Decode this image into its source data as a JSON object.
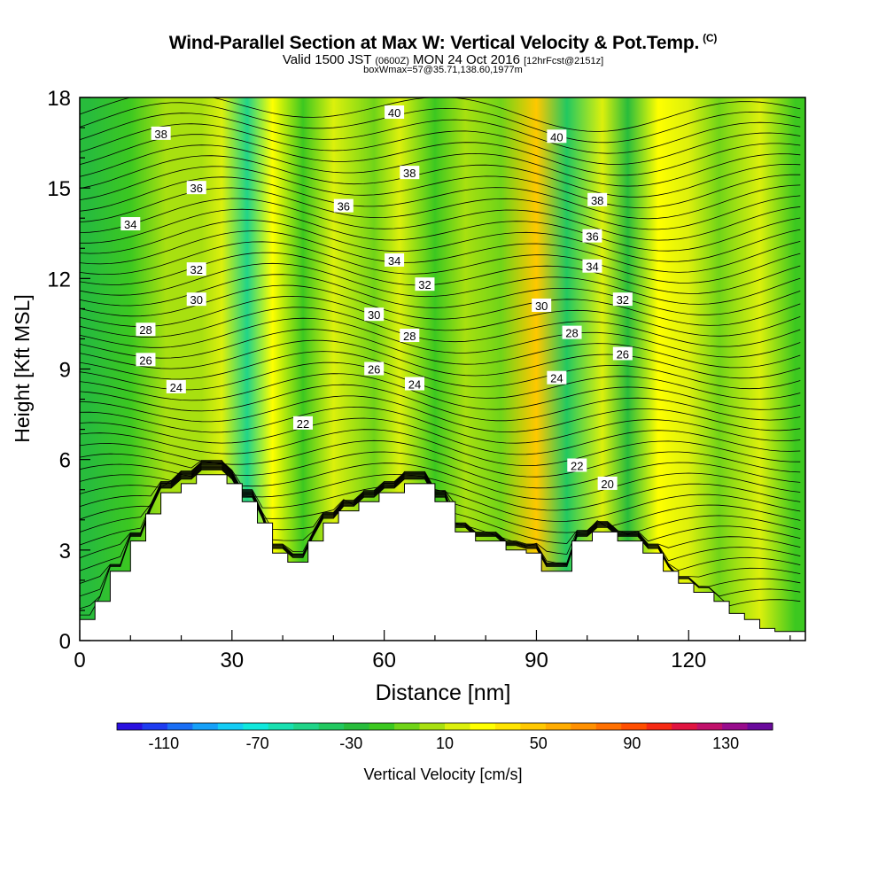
{
  "header": {
    "title": "Wind-Parallel Section at Max W: Vertical Velocity & Pot.Temp.",
    "copyright": "(C)",
    "valid_prefix": "Valid 1500 JST",
    "valid_utc": "(0600Z)",
    "valid_date": "MON 24 Oct 2016",
    "forecast": "[12hrFcst@2151z]",
    "box_info": "boxWmax=57@35.71,138.60,1977m"
  },
  "chart_data": {
    "type": "heatmap",
    "title": "Wind-Parallel Section at Max W: Vertical Velocity & Pot.Temp.",
    "xlabel": "Distance [nm]",
    "ylabel": "Height [Kft MSL]",
    "xlim": [
      0,
      143
    ],
    "ylim": [
      0,
      18
    ],
    "x_ticks": [
      0,
      30,
      60,
      90,
      120
    ],
    "y_ticks": [
      0,
      3,
      6,
      9,
      12,
      15,
      18
    ],
    "colorbar_label": "Vertical Velocity [cm/s]",
    "colorbar_ticks": [
      -110,
      -70,
      -30,
      10,
      50,
      90,
      130
    ],
    "colorbar_colors": [
      "#2a10e0",
      "#1e3cf0",
      "#1a6ef4",
      "#16a0f8",
      "#14ccf4",
      "#10e8dc",
      "#18e0b0",
      "#20d488",
      "#22c860",
      "#28bc3c",
      "#3cc820",
      "#70d418",
      "#a8e010",
      "#dcf00c",
      "#ffff00",
      "#ffe400",
      "#ffc800",
      "#ffac00",
      "#ff9000",
      "#ff7000",
      "#ff4e00",
      "#f62a14",
      "#e01440",
      "#c0106a",
      "#980c8c",
      "#6a0a9c"
    ],
    "terrain_profile_kft": [
      [
        0,
        0
      ],
      [
        0,
        0.7
      ],
      [
        3,
        0.7
      ],
      [
        3,
        1.3
      ],
      [
        6,
        1.3
      ],
      [
        6,
        2.3
      ],
      [
        10,
        2.3
      ],
      [
        10,
        3.3
      ],
      [
        13,
        3.3
      ],
      [
        13,
        4.2
      ],
      [
        16,
        4.2
      ],
      [
        16,
        4.9
      ],
      [
        20,
        4.9
      ],
      [
        20,
        5.2
      ],
      [
        23,
        5.2
      ],
      [
        23,
        5.5
      ],
      [
        29,
        5.5
      ],
      [
        29,
        5.2
      ],
      [
        32,
        5.2
      ],
      [
        32,
        4.6
      ],
      [
        35,
        4.6
      ],
      [
        35,
        3.9
      ],
      [
        38,
        3.9
      ],
      [
        38,
        2.9
      ],
      [
        41,
        2.9
      ],
      [
        41,
        2.6
      ],
      [
        45,
        2.6
      ],
      [
        45,
        3.3
      ],
      [
        48,
        3.3
      ],
      [
        48,
        3.9
      ],
      [
        51,
        3.9
      ],
      [
        51,
        4.3
      ],
      [
        55,
        4.3
      ],
      [
        55,
        4.6
      ],
      [
        59,
        4.6
      ],
      [
        59,
        4.9
      ],
      [
        64,
        4.9
      ],
      [
        64,
        5.2
      ],
      [
        70,
        5.2
      ],
      [
        70,
        4.6
      ],
      [
        74,
        4.6
      ],
      [
        74,
        3.6
      ],
      [
        78,
        3.6
      ],
      [
        78,
        3.3
      ],
      [
        84,
        3.3
      ],
      [
        84,
        3.0
      ],
      [
        88,
        3.0
      ],
      [
        88,
        2.9
      ],
      [
        91,
        2.9
      ],
      [
        91,
        2.3
      ],
      [
        97,
        2.3
      ],
      [
        97,
        3.3
      ],
      [
        101,
        3.3
      ],
      [
        101,
        3.6
      ],
      [
        106,
        3.6
      ],
      [
        106,
        3.3
      ],
      [
        111,
        3.3
      ],
      [
        111,
        2.9
      ],
      [
        115,
        2.9
      ],
      [
        115,
        2.3
      ],
      [
        118,
        2.3
      ],
      [
        118,
        1.9
      ],
      [
        121,
        1.9
      ],
      [
        121,
        1.6
      ],
      [
        125,
        1.6
      ],
      [
        125,
        1.3
      ],
      [
        128,
        1.3
      ],
      [
        128,
        0.9
      ],
      [
        131,
        0.9
      ],
      [
        131,
        0.7
      ],
      [
        134,
        0.7
      ],
      [
        134,
        0.4
      ],
      [
        137,
        0.4
      ],
      [
        137,
        0.3
      ],
      [
        143,
        0.3
      ],
      [
        143,
        0
      ]
    ],
    "velocity_bands": [
      {
        "x_center": 2,
        "w_cms": -25
      },
      {
        "x_center": 10,
        "w_cms": -15
      },
      {
        "x_center": 17,
        "w_cms": 0
      },
      {
        "x_center": 24,
        "w_cms": 5
      },
      {
        "x_center": 28,
        "w_cms": 20
      },
      {
        "x_center": 33,
        "w_cms": -45
      },
      {
        "x_center": 38,
        "w_cms": 30
      },
      {
        "x_center": 44,
        "w_cms": -20
      },
      {
        "x_center": 50,
        "w_cms": 10
      },
      {
        "x_center": 58,
        "w_cms": -10
      },
      {
        "x_center": 63,
        "w_cms": 20
      },
      {
        "x_center": 70,
        "w_cms": -20
      },
      {
        "x_center": 76,
        "w_cms": 5
      },
      {
        "x_center": 83,
        "w_cms": -10
      },
      {
        "x_center": 90,
        "w_cms": 50
      },
      {
        "x_center": 96,
        "w_cms": -35
      },
      {
        "x_center": 103,
        "w_cms": 20
      },
      {
        "x_center": 108,
        "w_cms": -25
      },
      {
        "x_center": 114,
        "w_cms": 30
      },
      {
        "x_center": 120,
        "w_cms": 20
      },
      {
        "x_center": 126,
        "w_cms": -5
      },
      {
        "x_center": 134,
        "w_cms": 10
      },
      {
        "x_center": 141,
        "w_cms": -15
      }
    ],
    "isentropes": [
      {
        "label": "20",
        "x": 104,
        "y": 5.2
      },
      {
        "label": "22",
        "x": 44,
        "y": 7.2
      },
      {
        "label": "22",
        "x": 98,
        "y": 5.8
      },
      {
        "label": "24",
        "x": 19,
        "y": 8.4
      },
      {
        "label": "24",
        "x": 66,
        "y": 8.5
      },
      {
        "label": "24",
        "x": 94,
        "y": 8.7
      },
      {
        "label": "26",
        "x": 13,
        "y": 9.3
      },
      {
        "label": "26",
        "x": 58,
        "y": 9.0
      },
      {
        "label": "26",
        "x": 107,
        "y": 9.5
      },
      {
        "label": "28",
        "x": 13,
        "y": 10.3
      },
      {
        "label": "28",
        "x": 65,
        "y": 10.1
      },
      {
        "label": "28",
        "x": 97,
        "y": 10.2
      },
      {
        "label": "30",
        "x": 23,
        "y": 11.3
      },
      {
        "label": "30",
        "x": 58,
        "y": 10.8
      },
      {
        "label": "30",
        "x": 91,
        "y": 11.1
      },
      {
        "label": "32",
        "x": 23,
        "y": 12.3
      },
      {
        "label": "32",
        "x": 68,
        "y": 11.8
      },
      {
        "label": "32",
        "x": 107,
        "y": 11.3
      },
      {
        "label": "34",
        "x": 10,
        "y": 13.8
      },
      {
        "label": "34",
        "x": 62,
        "y": 12.6
      },
      {
        "label": "34",
        "x": 101,
        "y": 12.4
      },
      {
        "label": "36",
        "x": 23,
        "y": 15.0
      },
      {
        "label": "36",
        "x": 52,
        "y": 14.4
      },
      {
        "label": "36",
        "x": 101,
        "y": 13.4
      },
      {
        "label": "38",
        "x": 16,
        "y": 16.8
      },
      {
        "label": "38",
        "x": 65,
        "y": 15.5
      },
      {
        "label": "38",
        "x": 102,
        "y": 14.6
      },
      {
        "label": "40",
        "x": 62,
        "y": 17.5
      },
      {
        "label": "40",
        "x": 94,
        "y": 16.7
      }
    ]
  }
}
